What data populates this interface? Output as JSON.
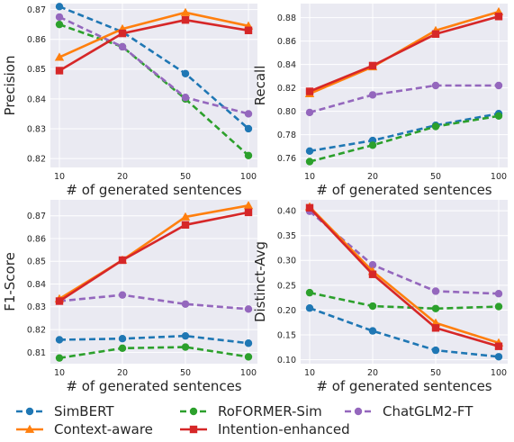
{
  "chart_data": [
    {
      "type": "line",
      "title": "",
      "xlabel": "# of generated sentences",
      "ylabel": "Precision",
      "categories": [
        "10",
        "20",
        "50",
        "100"
      ],
      "ylim": [
        0.817,
        0.872
      ],
      "yticks": [
        "0.82",
        "0.83",
        "0.84",
        "0.85",
        "0.86",
        "0.87"
      ],
      "grid": true,
      "series": [
        {
          "name": "SimBERT",
          "values": [
            0.871,
            0.8625,
            0.8485,
            0.83
          ]
        },
        {
          "name": "RoFORMER-Sim",
          "values": [
            0.865,
            0.8575,
            0.84,
            0.821
          ]
        },
        {
          "name": "ChatGLM2-FT",
          "values": [
            0.8675,
            0.8575,
            0.8405,
            0.835
          ]
        },
        {
          "name": "Context-aware",
          "values": [
            0.854,
            0.8635,
            0.869,
            0.8645
          ]
        },
        {
          "name": "Intention-enhanced",
          "values": [
            0.8495,
            0.862,
            0.8665,
            0.863
          ]
        }
      ]
    },
    {
      "type": "line",
      "title": "",
      "xlabel": "# of generated sentences",
      "ylabel": "Recall",
      "categories": [
        "10",
        "20",
        "50",
        "100"
      ],
      "ylim": [
        0.752,
        0.892
      ],
      "yticks": [
        "0.76",
        "0.78",
        "0.80",
        "0.82",
        "0.84",
        "0.86",
        "0.88"
      ],
      "grid": true,
      "series": [
        {
          "name": "SimBERT",
          "values": [
            0.766,
            0.775,
            0.788,
            0.798
          ]
        },
        {
          "name": "RoFORMER-Sim",
          "values": [
            0.757,
            0.771,
            0.787,
            0.796
          ]
        },
        {
          "name": "ChatGLM2-FT",
          "values": [
            0.799,
            0.814,
            0.822,
            0.822
          ]
        },
        {
          "name": "Context-aware",
          "values": [
            0.815,
            0.838,
            0.869,
            0.885
          ]
        },
        {
          "name": "Intention-enhanced",
          "values": [
            0.817,
            0.839,
            0.866,
            0.881
          ]
        }
      ]
    },
    {
      "type": "line",
      "title": "",
      "xlabel": "# of generated sentences",
      "ylabel": "F1-Score",
      "categories": [
        "10",
        "20",
        "50",
        "100"
      ],
      "ylim": [
        0.805,
        0.877
      ],
      "yticks": [
        "0.81",
        "0.82",
        "0.83",
        "0.84",
        "0.85",
        "0.86",
        "0.87"
      ],
      "grid": true,
      "series": [
        {
          "name": "SimBERT",
          "values": [
            0.8155,
            0.816,
            0.8172,
            0.814
          ]
        },
        {
          "name": "RoFORMER-Sim",
          "values": [
            0.8075,
            0.8118,
            0.8123,
            0.808
          ]
        },
        {
          "name": "ChatGLM2-FT",
          "values": [
            0.8325,
            0.8352,
            0.8312,
            0.829
          ]
        },
        {
          "name": "Context-aware",
          "values": [
            0.8335,
            0.8505,
            0.8695,
            0.8745
          ]
        },
        {
          "name": "Intention-enhanced",
          "values": [
            0.8325,
            0.8505,
            0.866,
            0.8715
          ]
        }
      ]
    },
    {
      "type": "line",
      "title": "",
      "xlabel": "# of generated sentences",
      "ylabel": "Distinct-Avg",
      "categories": [
        "10",
        "20",
        "50",
        "100"
      ],
      "ylim": [
        0.092,
        0.422
      ],
      "yticks": [
        "0.10",
        "0.15",
        "0.20",
        "0.25",
        "0.30",
        "0.35",
        "0.40"
      ],
      "grid": true,
      "series": [
        {
          "name": "SimBERT",
          "values": [
            0.204,
            0.158,
            0.119,
            0.106
          ]
        },
        {
          "name": "RoFORMER-Sim",
          "values": [
            0.235,
            0.208,
            0.203,
            0.207
          ]
        },
        {
          "name": "ChatGLM2-FT",
          "values": [
            0.399,
            0.291,
            0.238,
            0.233
          ]
        },
        {
          "name": "Context-aware",
          "values": [
            0.408,
            0.278,
            0.174,
            0.134
          ]
        },
        {
          "name": "Intention-enhanced",
          "values": [
            0.406,
            0.272,
            0.164,
            0.127
          ]
        }
      ]
    }
  ],
  "series_styles": [
    {
      "name": "SimBERT",
      "color": "#1f77b4",
      "dash": true,
      "marker": "circle"
    },
    {
      "name": "RoFORMER-Sim",
      "color": "#2ca02c",
      "dash": true,
      "marker": "circle"
    },
    {
      "name": "ChatGLM2-FT",
      "color": "#9467bd",
      "dash": true,
      "marker": "circle"
    },
    {
      "name": "Context-aware",
      "color": "#ff7f0e",
      "dash": false,
      "marker": "triangle"
    },
    {
      "name": "Intention-enhanced",
      "color": "#d62728",
      "dash": false,
      "marker": "square"
    }
  ],
  "legend": {
    "placement": "bottom",
    "items": [
      "SimBERT",
      "RoFORMER-Sim",
      "ChatGLM2-FT",
      "Context-aware",
      "Intention-enhanced"
    ]
  },
  "style": {
    "panel_background": "#eaeaf2",
    "grid_color": "#ffffff"
  }
}
